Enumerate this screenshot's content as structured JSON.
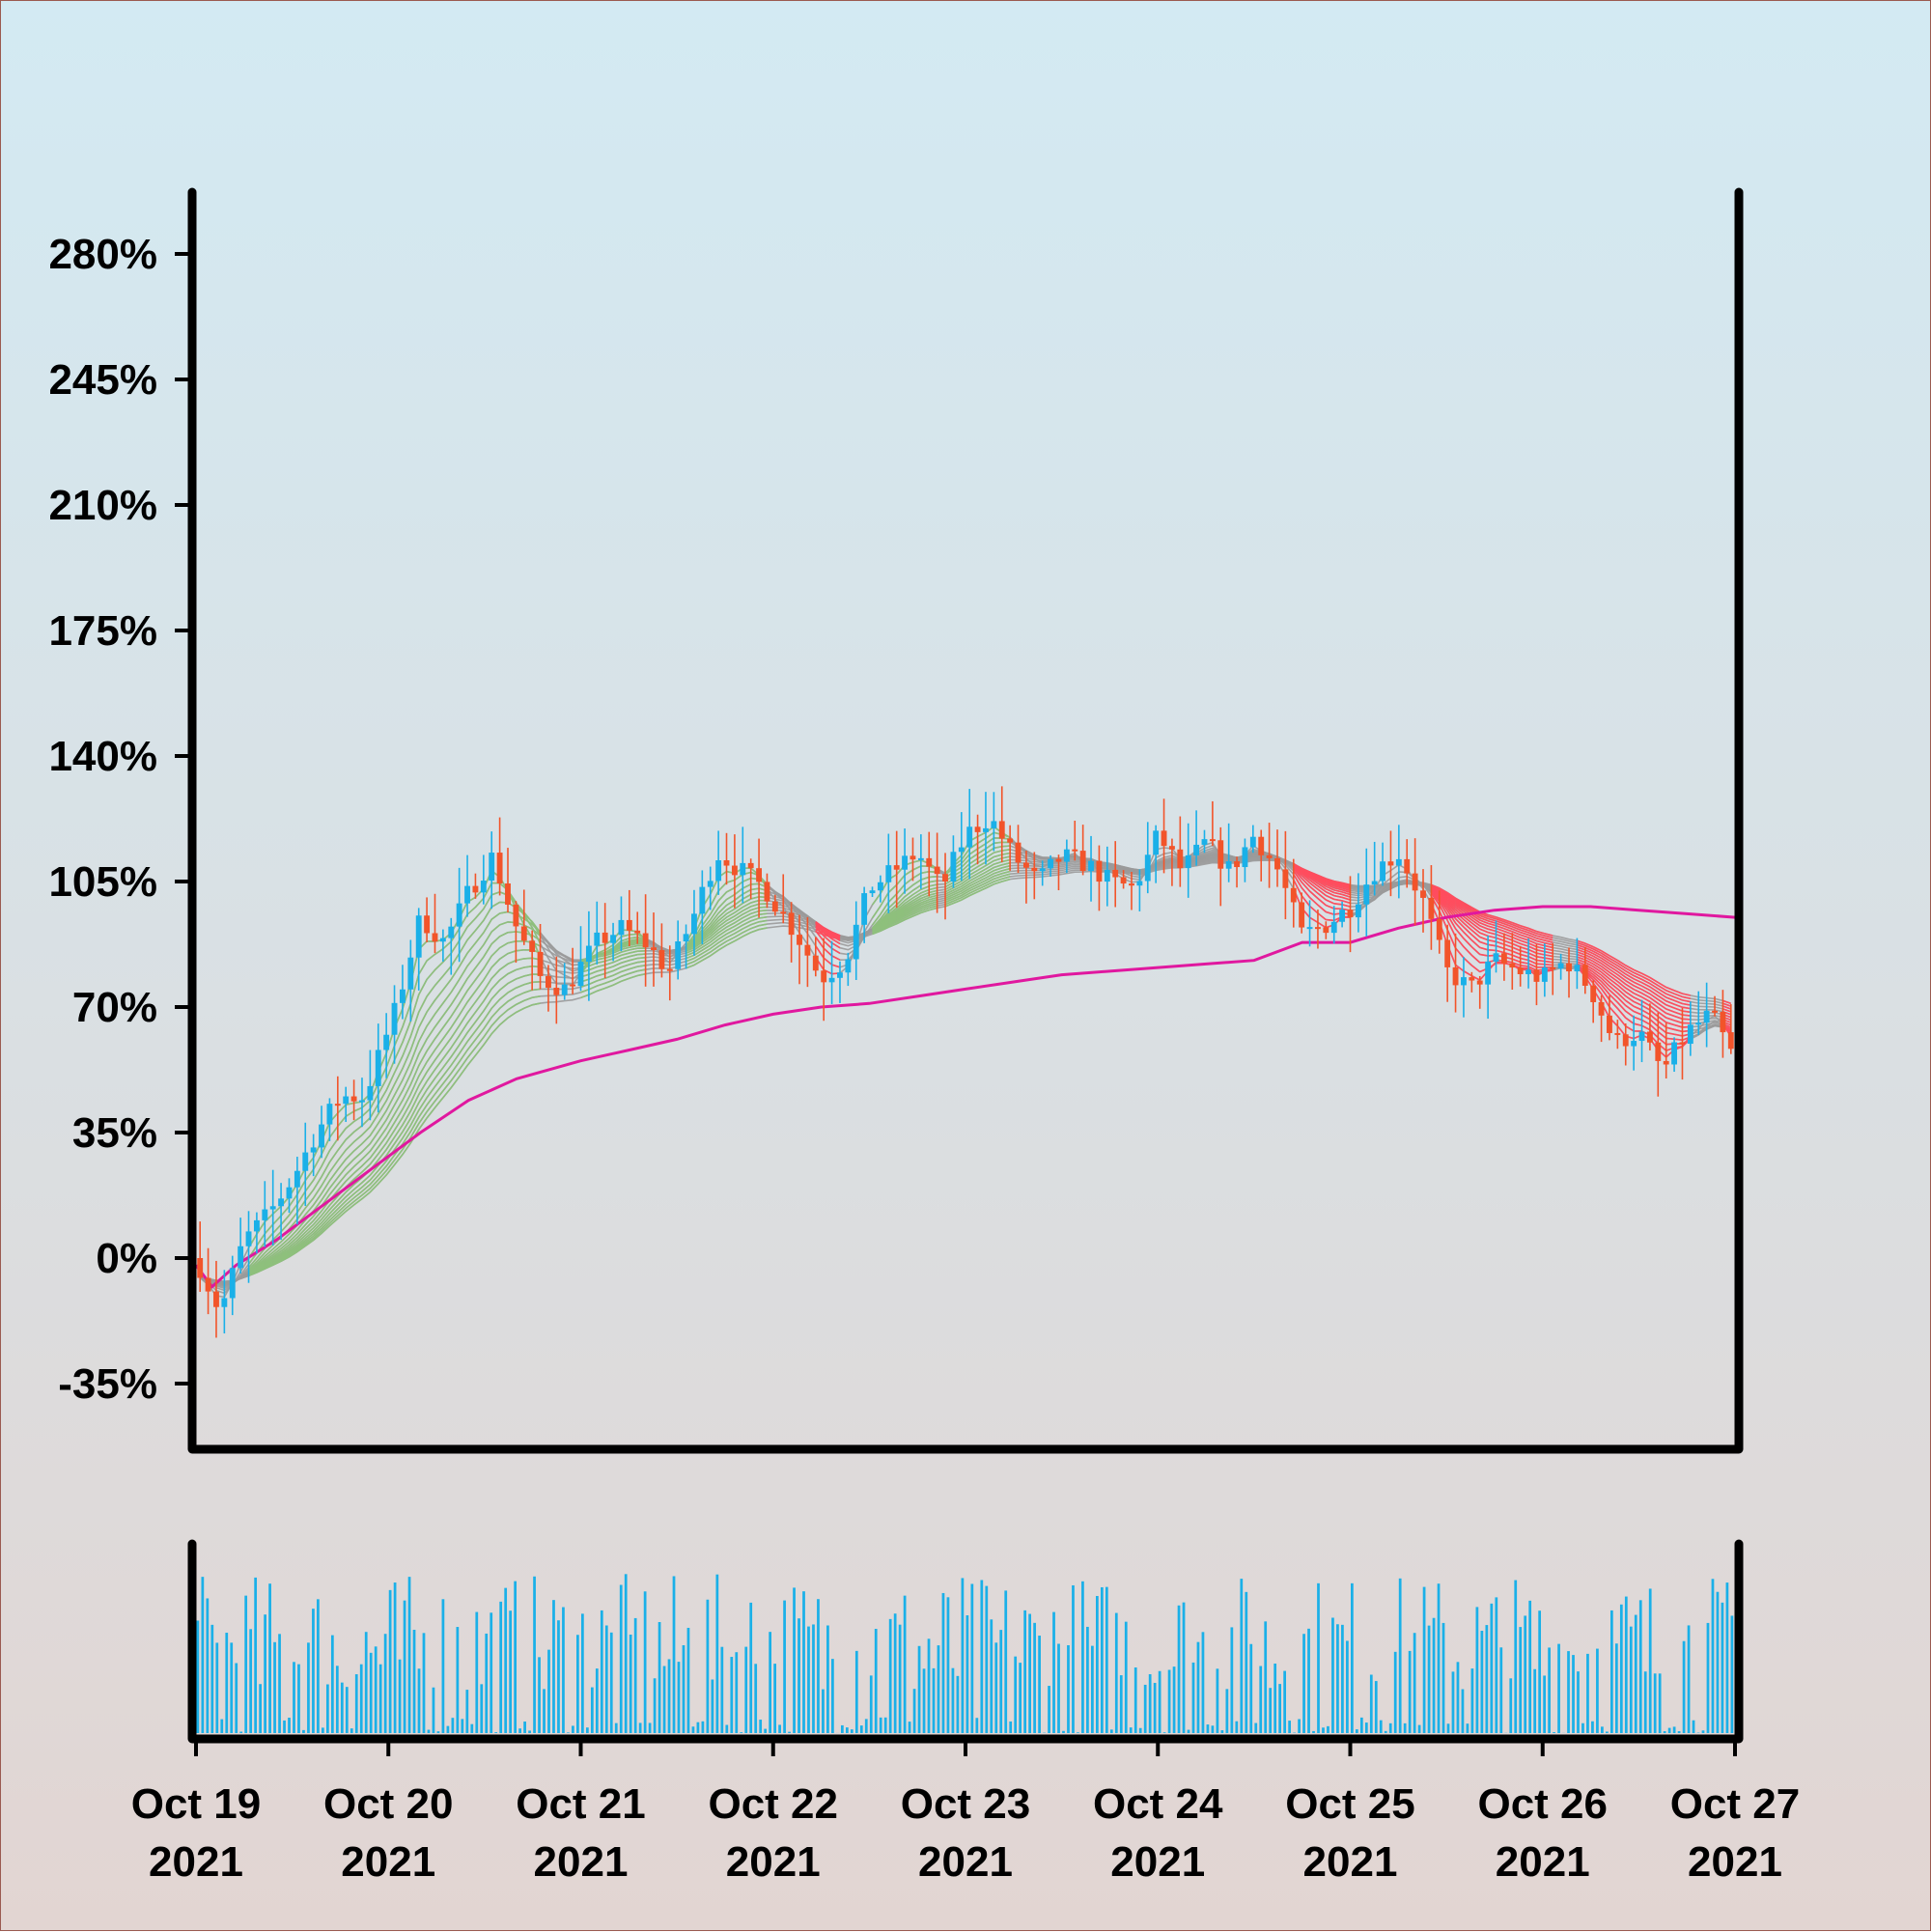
{
  "chart_data": {
    "type": "candlestick",
    "title": "",
    "xlabel": "",
    "ylabel": "",
    "y_unit": "%",
    "ylim": [
      -55,
      295
    ],
    "yticks": [
      {
        "value": 280,
        "label": "280%"
      },
      {
        "value": 245,
        "label": "245%"
      },
      {
        "value": 210,
        "label": "210%"
      },
      {
        "value": 175,
        "label": "175%"
      },
      {
        "value": 140,
        "label": "140%"
      },
      {
        "value": 105,
        "label": "105%"
      },
      {
        "value": 70,
        "label": "70%"
      },
      {
        "value": 35,
        "label": "35%"
      },
      {
        "value": 0,
        "label": "0%"
      },
      {
        "value": -35,
        "label": "-35%"
      }
    ],
    "xlim": [
      "2021-10-19",
      "2021-10-27"
    ],
    "xticks": [
      {
        "date": "2021-10-19",
        "line1": "Oct 19",
        "line2": "2021"
      },
      {
        "date": "2021-10-20",
        "line1": "Oct 20",
        "line2": "2021"
      },
      {
        "date": "2021-10-21",
        "line1": "Oct 21",
        "line2": "2021"
      },
      {
        "date": "2021-10-22",
        "line1": "Oct 22",
        "line2": "2021"
      },
      {
        "date": "2021-10-23",
        "line1": "Oct 23",
        "line2": "2021"
      },
      {
        "date": "2021-10-24",
        "line1": "Oct 24",
        "line2": "2021"
      },
      {
        "date": "2021-10-25",
        "line1": "Oct 25",
        "line2": "2021"
      },
      {
        "date": "2021-10-26",
        "line1": "Oct 26",
        "line2": "2021"
      },
      {
        "date": "2021-10-27",
        "line1": "Oct 27",
        "line2": "2021"
      }
    ],
    "close_path": [
      [
        "2021-10-19T00:00",
        0
      ],
      [
        "2021-10-19T03:00",
        -15
      ],
      [
        "2021-10-19T06:00",
        5
      ],
      [
        "2021-10-19T09:00",
        12
      ],
      [
        "2021-10-19T12:00",
        22
      ],
      [
        "2021-10-19T15:00",
        35
      ],
      [
        "2021-10-19T18:00",
        45
      ],
      [
        "2021-10-19T21:00",
        45
      ],
      [
        "2021-10-20T01:00",
        70
      ],
      [
        "2021-10-20T04:00",
        95
      ],
      [
        "2021-10-20T07:00",
        88
      ],
      [
        "2021-10-20T10:00",
        102
      ],
      [
        "2021-10-20T13:00",
        112
      ],
      [
        "2021-10-20T16:00",
        92
      ],
      [
        "2021-10-20T19:00",
        78
      ],
      [
        "2021-10-20T22:00",
        75
      ],
      [
        "2021-10-21T02:00",
        88
      ],
      [
        "2021-10-21T05:00",
        92
      ],
      [
        "2021-10-21T08:00",
        88
      ],
      [
        "2021-10-21T11:00",
        80
      ],
      [
        "2021-10-21T14:00",
        95
      ],
      [
        "2021-10-21T17:00",
        113
      ],
      [
        "2021-10-21T20:00",
        108
      ],
      [
        "2021-10-21T23:00",
        103
      ],
      [
        "2021-10-22T03:00",
        90
      ],
      [
        "2021-10-22T06:00",
        78
      ],
      [
        "2021-10-22T09:00",
        83
      ],
      [
        "2021-10-22T12:00",
        103
      ],
      [
        "2021-10-22T15:00",
        108
      ],
      [
        "2021-10-22T18:00",
        113
      ],
      [
        "2021-10-22T21:00",
        103
      ],
      [
        "2021-10-23T00:00",
        118
      ],
      [
        "2021-10-23T03:00",
        123
      ],
      [
        "2021-10-23T06:00",
        112
      ],
      [
        "2021-10-23T09:00",
        105
      ],
      [
        "2021-10-23T12:00",
        112
      ],
      [
        "2021-10-23T15:00",
        110
      ],
      [
        "2021-10-23T18:00",
        105
      ],
      [
        "2021-10-23T21:00",
        103
      ],
      [
        "2021-10-24T00:00",
        118
      ],
      [
        "2021-10-24T03:00",
        108
      ],
      [
        "2021-10-24T06:00",
        116
      ],
      [
        "2021-10-24T09:00",
        108
      ],
      [
        "2021-10-24T12:00",
        118
      ],
      [
        "2021-10-24T15:00",
        108
      ],
      [
        "2021-10-24T18:00",
        90
      ],
      [
        "2021-10-24T21:00",
        93
      ],
      [
        "2021-10-25T00:00",
        98
      ],
      [
        "2021-10-25T03:00",
        108
      ],
      [
        "2021-10-25T06:00",
        113
      ],
      [
        "2021-10-25T09:00",
        100
      ],
      [
        "2021-10-25T12:00",
        80
      ],
      [
        "2021-10-25T15:00",
        75
      ],
      [
        "2021-10-25T18:00",
        83
      ],
      [
        "2021-10-25T21:00",
        80
      ],
      [
        "2021-10-26T00:00",
        78
      ],
      [
        "2021-10-26T03:00",
        83
      ],
      [
        "2021-10-26T06:00",
        75
      ],
      [
        "2021-10-26T09:00",
        60
      ],
      [
        "2021-10-26T12:00",
        63
      ],
      [
        "2021-10-26T15:00",
        52
      ],
      [
        "2021-10-26T18:00",
        63
      ],
      [
        "2021-10-26T21:00",
        68
      ],
      [
        "2021-10-27T00:00",
        55
      ]
    ],
    "moving_average": [
      [
        "2021-10-19T00:00",
        -2
      ],
      [
        "2021-10-19T02:00",
        -8
      ],
      [
        "2021-10-19T05:00",
        -2
      ],
      [
        "2021-10-19T10:00",
        5
      ],
      [
        "2021-10-19T16:00",
        15
      ],
      [
        "2021-10-19T22:00",
        25
      ],
      [
        "2021-10-20T04:00",
        35
      ],
      [
        "2021-10-20T10:00",
        44
      ],
      [
        "2021-10-20T16:00",
        50
      ],
      [
        "2021-10-21T00:00",
        55
      ],
      [
        "2021-10-21T06:00",
        58
      ],
      [
        "2021-10-21T12:00",
        61
      ],
      [
        "2021-10-21T18:00",
        65
      ],
      [
        "2021-10-22T00:00",
        68
      ],
      [
        "2021-10-22T06:00",
        70
      ],
      [
        "2021-10-22T12:00",
        71
      ],
      [
        "2021-10-22T18:00",
        73
      ],
      [
        "2021-10-23T00:00",
        75
      ],
      [
        "2021-10-23T06:00",
        77
      ],
      [
        "2021-10-23T12:00",
        79
      ],
      [
        "2021-10-23T18:00",
        80
      ],
      [
        "2021-10-24T00:00",
        81
      ],
      [
        "2021-10-24T06:00",
        82
      ],
      [
        "2021-10-24T12:00",
        83
      ],
      [
        "2021-10-24T18:00",
        88
      ],
      [
        "2021-10-25T00:00",
        88
      ],
      [
        "2021-10-25T06:00",
        92
      ],
      [
        "2021-10-25T12:00",
        95
      ],
      [
        "2021-10-25T18:00",
        97
      ],
      [
        "2021-10-26T00:00",
        98
      ],
      [
        "2021-10-26T06:00",
        98
      ],
      [
        "2021-10-26T12:00",
        97
      ],
      [
        "2021-10-26T18:00",
        96
      ],
      [
        "2021-10-27T00:00",
        95
      ]
    ],
    "volume": {
      "approx_bar_count": 320,
      "max_relative": 1.0
    },
    "colors": {
      "up": "#1ab0e8",
      "down": "#f2542a",
      "moving_average": "#e0189f",
      "ribbon_neutral": "#9a9a9a",
      "ribbon_bull": "#8ec07c",
      "ribbon_bear": "#ff4d5e",
      "volume": "#1ab0e8",
      "frame": "#000000"
    },
    "grid": false,
    "legend": "none"
  }
}
